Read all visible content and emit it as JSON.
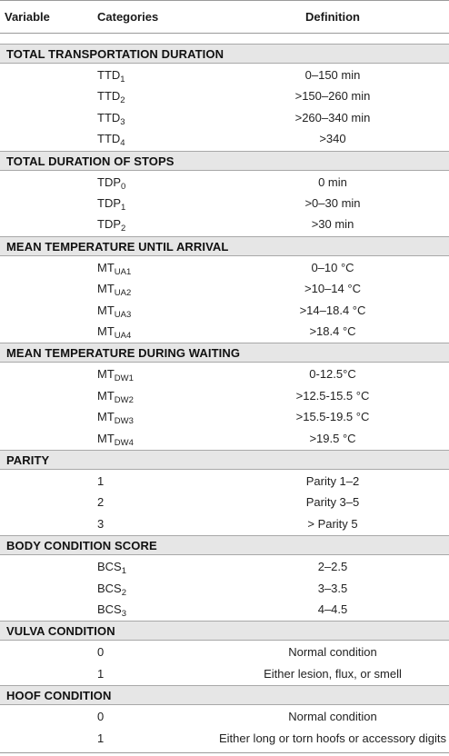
{
  "headers": {
    "variable": "Variable",
    "categories": "Categories",
    "definition": "Definition"
  },
  "sections": [
    {
      "title": "TOTAL TRANSPORTATION DURATION",
      "rows": [
        {
          "cat": "TTD",
          "sub": "1",
          "def": "0–150 min"
        },
        {
          "cat": "TTD",
          "sub": "2",
          "def": ">150–260 min"
        },
        {
          "cat": "TTD",
          "sub": "3",
          "def": ">260–340 min"
        },
        {
          "cat": "TTD",
          "sub": "4",
          "def": ">340"
        }
      ]
    },
    {
      "title": "TOTAL DURATION OF STOPS",
      "rows": [
        {
          "cat": "TDP",
          "sub": "0",
          "def": "0 min"
        },
        {
          "cat": "TDP",
          "sub": "1",
          "def": ">0–30 min"
        },
        {
          "cat": "TDP",
          "sub": "2",
          "def": ">30 min"
        }
      ]
    },
    {
      "title": "MEAN TEMPERATURE UNTIL ARRIVAL",
      "rows": [
        {
          "cat": "MT",
          "sub": "UA1",
          "def": "0–10 °C"
        },
        {
          "cat": "MT",
          "sub": "UA2",
          "def": ">10–14 °C"
        },
        {
          "cat": "MT",
          "sub": "UA3",
          "def": ">14–18.4 °C"
        },
        {
          "cat": "MT",
          "sub": "UA4",
          "def": ">18.4 °C"
        }
      ]
    },
    {
      "title": "MEAN TEMPERATURE DURING WAITING",
      "rows": [
        {
          "cat": "MT",
          "sub": "DW1",
          "def": "0-12.5°C"
        },
        {
          "cat": "MT",
          "sub": "DW2",
          "def": ">12.5-15.5 °C"
        },
        {
          "cat": "MT",
          "sub": "DW3",
          "def": ">15.5-19.5 °C"
        },
        {
          "cat": "MT",
          "sub": "DW4",
          "def": ">19.5 °C"
        }
      ]
    },
    {
      "title": "PARITY",
      "rows": [
        {
          "cat": "1",
          "sub": "",
          "def": "Parity 1–2"
        },
        {
          "cat": "2",
          "sub": "",
          "def": "Parity 3–5"
        },
        {
          "cat": "3",
          "sub": "",
          "def": "> Parity 5"
        }
      ]
    },
    {
      "title": "BODY CONDITION SCORE",
      "rows": [
        {
          "cat": "BCS",
          "sub": "1",
          "def": "2–2.5"
        },
        {
          "cat": "BCS",
          "sub": "2",
          "def": "3–3.5"
        },
        {
          "cat": "BCS",
          "sub": "3",
          "def": "4–4.5"
        }
      ]
    },
    {
      "title": "VULVA CONDITION",
      "rows": [
        {
          "cat": "0",
          "sub": "",
          "def": "Normal condition"
        },
        {
          "cat": "1",
          "sub": "",
          "def": "Either lesion, flux, or smell"
        }
      ]
    },
    {
      "title": "HOOF CONDITION",
      "rows": [
        {
          "cat": "0",
          "sub": "",
          "def": "Normal condition"
        },
        {
          "cat": "1",
          "sub": "",
          "def": "Either long or torn hoofs or accessory digits"
        }
      ]
    }
  ]
}
